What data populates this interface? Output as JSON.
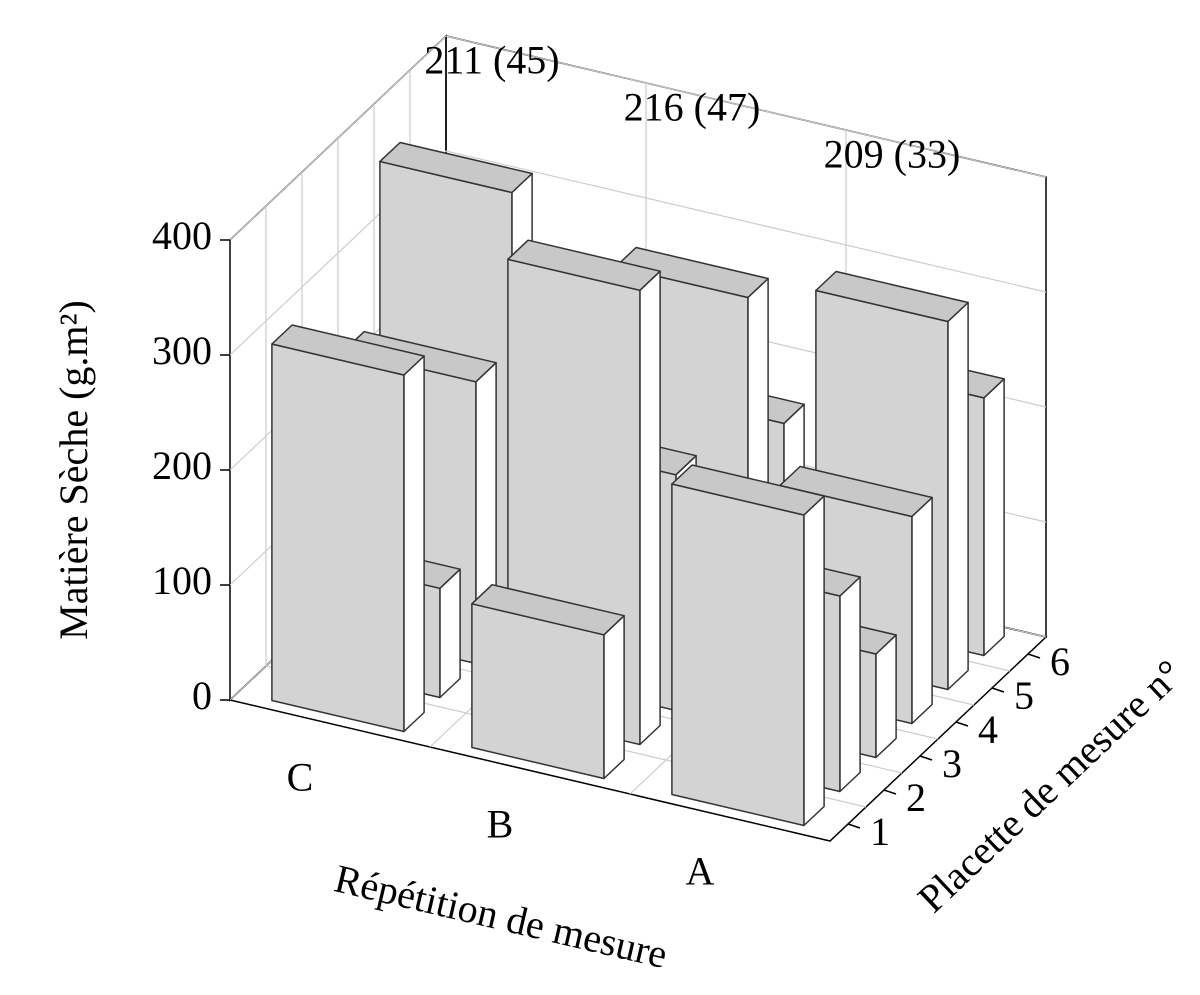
{
  "chart_data": {
    "type": "bar3d",
    "x_label": "Répétition de mesure",
    "depth_label": "Placette de mesure n°",
    "z_label": "Matière Sèche (g.m²)",
    "categories": [
      "C",
      "B",
      "A"
    ],
    "depth_categories": [
      "1",
      "2",
      "3",
      "4",
      "5",
      "6"
    ],
    "values": [
      [
        310,
        95,
        245,
        380,
        170,
        66
      ],
      [
        125,
        395,
        205,
        110,
        300,
        161
      ],
      [
        270,
        170,
        90,
        180,
        320,
        224
      ]
    ],
    "annotations": [
      "211 (45)",
      "216 (47)",
      "209 (33)"
    ],
    "zlim": [
      0,
      400
    ],
    "zticks": [
      0,
      100,
      200,
      300,
      400
    ],
    "grid": true,
    "color": "#d3d3d3",
    "side_color": "#ffffff"
  }
}
